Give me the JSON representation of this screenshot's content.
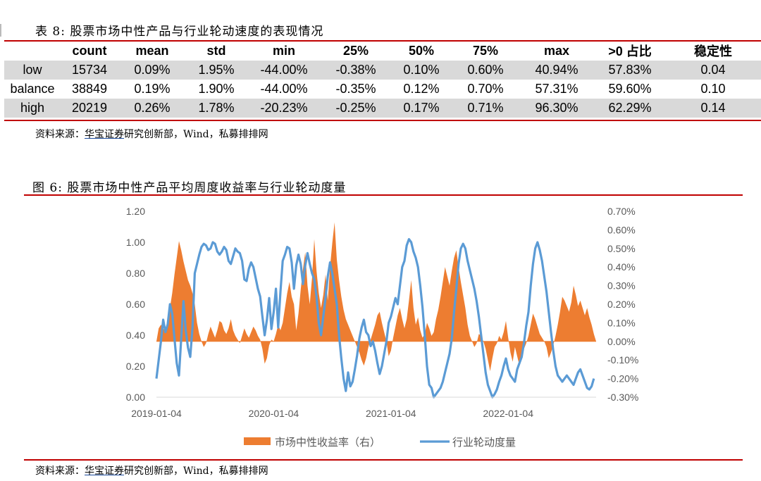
{
  "table": {
    "caption": "表 8:  股票市场中性产品与行业轮动速度的表现情况",
    "headers": [
      "",
      "count",
      "mean",
      "std",
      "min",
      "25%",
      "50%",
      "75%",
      "max",
      ">0 占比",
      "稳定性"
    ],
    "rows": [
      {
        "label": "low",
        "cells": [
          "15734",
          "0.09%",
          "1.95%",
          "-44.00%",
          "-0.38%",
          "0.10%",
          "0.60%",
          "40.94%",
          "57.83%",
          "0.04"
        ]
      },
      {
        "label": "balance",
        "cells": [
          "38849",
          "0.19%",
          "1.90%",
          "-44.00%",
          "-0.35%",
          "0.12%",
          "0.70%",
          "57.31%",
          "59.60%",
          "0.10"
        ]
      },
      {
        "label": "high",
        "cells": [
          "20219",
          "0.26%",
          "1.78%",
          "-20.23%",
          "-0.25%",
          "0.17%",
          "0.71%",
          "96.30%",
          "62.29%",
          "0.14"
        ]
      }
    ],
    "source_prefix": "资料来源：",
    "source_link": "华宝证券",
    "source_suffix": "研究创新部，Wind，私募排排网"
  },
  "figure": {
    "caption": "图 6:  股票市场中性产品平均周度收益率与行业轮动度量",
    "source_prefix": "资料来源：",
    "source_link": "华宝证券",
    "source_suffix": "研究创新部，Wind，私募排排网"
  },
  "chart_data": {
    "type": "area+line",
    "x_tick_labels": [
      "2019-01-04",
      "2020-01-04",
      "2021-01-04",
      "2022-01-04"
    ],
    "x_tick_weeks": [
      0,
      52,
      104,
      156
    ],
    "y_left": {
      "range": [
        0,
        1.2
      ],
      "ticks": [
        "0.00",
        "0.20",
        "0.40",
        "0.60",
        "0.80",
        "1.00",
        "1.20"
      ]
    },
    "y_right": {
      "range": [
        -0.003,
        0.007
      ],
      "ticks": [
        "-0.30%",
        "-0.20%",
        "-0.10%",
        "0.00%",
        "0.10%",
        "0.20%",
        "0.30%",
        "0.40%",
        "0.50%",
        "0.60%",
        "0.70%"
      ]
    },
    "legend": {
      "placement": "bottom-center"
    },
    "series": [
      {
        "name": "市场中性收益率（右）",
        "axis": "right",
        "style": "area",
        "color": "#ed7d31",
        "values": [
          0.0,
          0.0007,
          0.0009,
          0.0007,
          0.0005,
          0.0011,
          0.0018,
          0.0026,
          0.0036,
          0.0045,
          0.0054,
          0.0049,
          0.0043,
          0.0038,
          0.0033,
          0.003,
          0.0026,
          0.002,
          0.001,
          0.0004,
          0.0,
          -0.0003,
          -0.0001,
          0.0004,
          0.0008,
          0.0005,
          0.0002,
          0.0006,
          0.0011,
          0.001,
          0.0006,
          0.0004,
          0.0007,
          0.0012,
          0.0006,
          0.0003,
          0.0001,
          -0.0001,
          0.0003,
          0.0007,
          0.0004,
          0.0002,
          0.0005,
          0.0008,
          0.0006,
          0.0003,
          0.0001,
          -0.0004,
          -0.0012,
          -0.0009,
          -0.0002,
          0.0001,
          0.0,
          0.0004,
          0.0009,
          0.0006,
          0.001,
          0.0018,
          0.0026,
          0.0032,
          0.0024,
          0.002,
          0.0006,
          0.0015,
          0.0028,
          0.0039,
          0.0048,
          0.003,
          0.002,
          0.0034,
          0.0055,
          0.0038,
          0.0026,
          0.0018,
          0.0025,
          0.0036,
          0.0022,
          0.004,
          0.0053,
          0.0064,
          0.0044,
          0.0033,
          0.0024,
          0.0017,
          0.0012,
          0.0009,
          0.0006,
          0.0003,
          0.0,
          -0.0003,
          -0.0006,
          -0.001,
          -0.0013,
          -0.0009,
          -0.0003,
          0.0001,
          0.0005,
          0.0009,
          0.0014,
          0.0016,
          0.001,
          0.0005,
          0.0,
          -0.0008,
          -0.0005,
          0.0002,
          0.0008,
          0.0014,
          0.0018,
          0.0012,
          0.0007,
          0.0012,
          0.0022,
          0.0033,
          0.0018,
          0.0009,
          0.0013,
          0.0006,
          0.0002,
          0.0004,
          0.001,
          0.0007,
          0.0003,
          0.0005,
          0.0012,
          0.0017,
          0.0024,
          0.0032,
          0.004,
          0.0035,
          0.003,
          0.0038,
          0.0045,
          0.0049,
          0.004,
          0.0032,
          0.0025,
          0.0018,
          0.0009,
          0.0003,
          0.0,
          -0.0003,
          -0.0001,
          0.0004,
          0.0003,
          0.0,
          -0.0004,
          -0.001,
          -0.0016,
          -0.0009,
          -0.0003,
          -0.0001,
          0.0003,
          0.0001,
          0.0005,
          0.0011,
          0.0002,
          -0.0006,
          -0.0011,
          -0.0003,
          -0.0008,
          -0.0013,
          -0.0008,
          -0.0004,
          -0.0001,
          0.0003,
          0.0009,
          0.0015,
          0.0012,
          0.0008,
          0.0004,
          0.0002,
          0.0,
          -0.0003,
          -0.0009,
          -0.0006,
          -0.0002,
          0.0003,
          0.0009,
          0.0016,
          0.0024,
          0.0022,
          0.0019,
          0.0016,
          0.0021,
          0.003,
          0.0025,
          0.0019,
          0.0022,
          0.0018,
          0.0014,
          0.0018,
          0.0013,
          0.0009,
          0.0004,
          0.0
        ]
      },
      {
        "name": "行业轮动度量",
        "axis": "left",
        "style": "line",
        "color": "#5b9bd5",
        "values": [
          0.12,
          0.24,
          0.36,
          0.5,
          0.42,
          0.47,
          0.6,
          0.54,
          0.38,
          0.22,
          0.14,
          0.38,
          0.62,
          0.43,
          0.32,
          0.26,
          0.45,
          0.8,
          0.86,
          0.92,
          0.97,
          0.99,
          0.98,
          0.95,
          0.96,
          1.0,
          0.99,
          0.94,
          0.92,
          0.94,
          0.97,
          0.95,
          0.88,
          0.86,
          0.91,
          0.96,
          0.94,
          0.93,
          0.88,
          0.76,
          0.75,
          0.83,
          0.87,
          0.84,
          0.77,
          0.7,
          0.65,
          0.52,
          0.4,
          0.5,
          0.64,
          0.44,
          0.55,
          0.7,
          0.45,
          0.68,
          0.88,
          0.92,
          0.97,
          0.96,
          0.87,
          0.7,
          0.85,
          0.92,
          0.86,
          0.73,
          0.85,
          0.93,
          0.86,
          0.8,
          0.76,
          0.65,
          0.48,
          0.4,
          0.52,
          0.64,
          0.78,
          0.87,
          0.8,
          0.7,
          0.6,
          0.4,
          0.25,
          0.12,
          0.04,
          0.16,
          0.07,
          0.1,
          0.18,
          0.27,
          0.38,
          0.45,
          0.5,
          0.42,
          0.4,
          0.33,
          0.36,
          0.3,
          0.22,
          0.15,
          0.2,
          0.28,
          0.36,
          0.48,
          0.52,
          0.58,
          0.64,
          0.6,
          0.72,
          0.84,
          0.88,
          0.98,
          1.02,
          1.0,
          0.94,
          0.9,
          0.84,
          0.72,
          0.58,
          0.4,
          0.2,
          0.08,
          0.06,
          0.0,
          0.02,
          0.04,
          0.06,
          0.1,
          0.16,
          0.22,
          0.28,
          0.38,
          0.55,
          0.7,
          0.86,
          0.96,
          0.99,
          0.96,
          0.88,
          0.82,
          0.76,
          0.7,
          0.62,
          0.52,
          0.4,
          0.28,
          0.16,
          0.08,
          0.04,
          0.0,
          0.02,
          0.05,
          0.1,
          0.14,
          0.2,
          0.25,
          0.18,
          0.14,
          0.12,
          0.1,
          0.18,
          0.22,
          0.26,
          0.35,
          0.46,
          0.55,
          0.72,
          0.86,
          0.96,
          1.0,
          0.95,
          0.88,
          0.78,
          0.68,
          0.55,
          0.42,
          0.3,
          0.2,
          0.14,
          0.12,
          0.1,
          0.12,
          0.14,
          0.12,
          0.1,
          0.08,
          0.12,
          0.16,
          0.18,
          0.14,
          0.1,
          0.06,
          0.05,
          0.07,
          0.12
        ]
      }
    ]
  }
}
